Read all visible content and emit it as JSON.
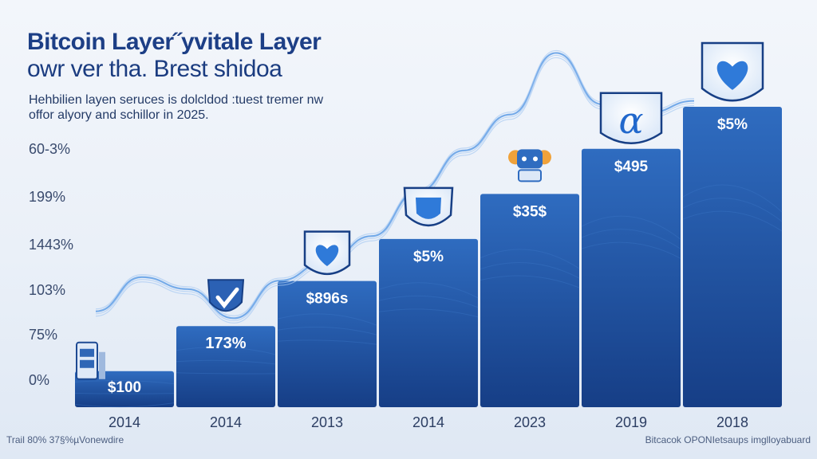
{
  "title_line1": "Bitcoin Layer˝yvitale Layer",
  "title_line2": "owr ver tha. Brest shidoa",
  "subtitle_line1": "Hehbilien layen seruces is dolcldod :tuest tremer nw",
  "subtitle_line2": "offor alyory and schillor in 2025.",
  "footer_left": "Trail 80% 37§%µVonewdire",
  "footer_right": "Bitcacok OPONIetsaups imglloyabuard",
  "colors": {
    "bar_top": "#2f6cc0",
    "bar_bottom": "#163e86",
    "line": "#7fb3ee",
    "accent": "#2d6fd6"
  },
  "chart_data": {
    "type": "bar",
    "title": "",
    "xlabel": "",
    "ylabel": "",
    "y_tick_labels": [
      "60-3%",
      "199%",
      "1443%",
      "103%",
      "75%",
      "0%"
    ],
    "categories": [
      "2014",
      "2014",
      "2013",
      "2014",
      "2023",
      "2019",
      "2018"
    ],
    "bar_labels": [
      "$100",
      "173%",
      "$896s",
      "$5%",
      "$35$",
      "$495",
      "$5%"
    ],
    "values": [
      0.12,
      0.27,
      0.42,
      0.56,
      0.71,
      0.86,
      1.0
    ],
    "icons": [
      "server-icon",
      "shield-check-icon",
      "heart-badge-icon",
      "shield-icon",
      "robot-icon",
      "alpha-badge-icon",
      "heart-badge-icon"
    ],
    "trend_line": [
      0.56,
      0.76,
      0.69,
      0.52,
      0.74,
      0.85,
      1.0,
      1.26,
      1.5,
      1.71,
      2.07,
      1.77,
      1.72,
      1.79
    ]
  }
}
